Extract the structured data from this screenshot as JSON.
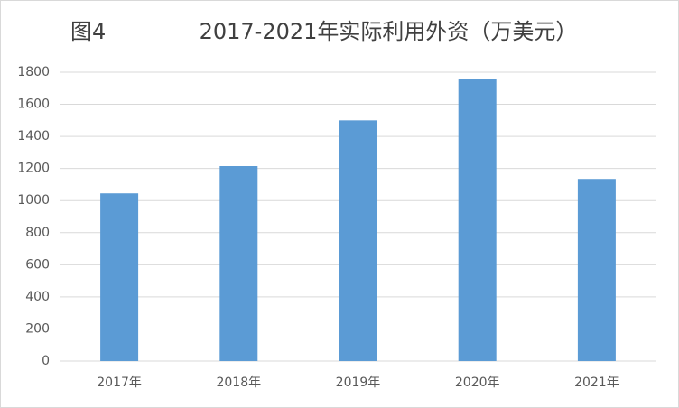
{
  "chart_data": {
    "type": "bar",
    "figure_label": "图4",
    "title": "2017-2021年实际利用外资（万美元）",
    "categories": [
      "2017年",
      "2018年",
      "2019年",
      "2020年",
      "2021年"
    ],
    "values": [
      1045,
      1215,
      1500,
      1755,
      1135
    ],
    "color": "#5b9bd5",
    "ylim": [
      0,
      1800
    ],
    "yticks": [
      0,
      200,
      400,
      600,
      800,
      1000,
      1200,
      1400,
      1600,
      1800
    ],
    "grid": true
  }
}
